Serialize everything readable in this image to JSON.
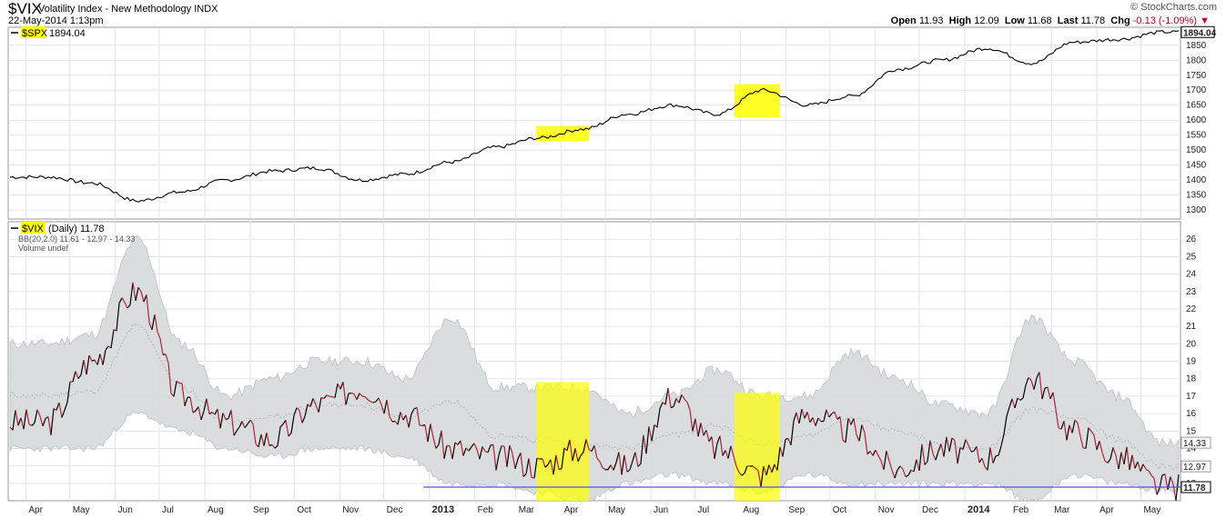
{
  "header": {
    "symbol": "$VIX",
    "name": "Volatility Index - New Methodology",
    "exchange": "INDX",
    "date": "22-May-2014 1:13pm",
    "brand": "© StockCharts.com",
    "open_label": "Open",
    "open": "11.93",
    "high_label": "High",
    "high": "12.09",
    "low_label": "Low",
    "low": "11.68",
    "last_label": "Last",
    "last": "11.78",
    "chg_label": "Chg",
    "chg": "-0.13 (-1.09%)"
  },
  "colors": {
    "spx_line": "#000000",
    "vix_up": "#000000",
    "vix_down": "#b3213a",
    "bband_fill": "#d8dcdc",
    "highlight": "#ffff00",
    "support_line": "#5555dd",
    "grid": "#e3e3e3"
  },
  "chart_data": [
    {
      "type": "line",
      "legend": "$SPX 1894.04",
      "legend_symbol": "$SPX",
      "legend_value": "1894.04",
      "last_value_label": "1894.04",
      "ylim": [
        1270,
        1910
      ],
      "yticks": [
        1300,
        1350,
        1400,
        1450,
        1500,
        1550,
        1600,
        1650,
        1700,
        1750,
        1800,
        1850
      ],
      "x_months": [
        "Apr",
        "May",
        "Jun",
        "Jul",
        "Aug",
        "Sep",
        "Oct",
        "Nov",
        "Dec",
        "2013",
        "Feb",
        "Mar",
        "Apr",
        "May",
        "Jun",
        "Jul",
        "Aug",
        "Sep",
        "Oct",
        "Nov",
        "Dec",
        "2014",
        "Feb",
        "Mar",
        "Apr",
        "May"
      ],
      "x": [
        "2012-04",
        "2012-05",
        "2012-06",
        "2012-07",
        "2012-08",
        "2012-09",
        "2012-10",
        "2012-11",
        "2012-12",
        "2013-01",
        "2013-02",
        "2013-03",
        "2013-04",
        "2013-05",
        "2013-06",
        "2013-07",
        "2013-08",
        "2013-09",
        "2013-10",
        "2013-11",
        "2013-12",
        "2014-01",
        "2014-02",
        "2014-03",
        "2014-04",
        "2014-05"
      ],
      "series": [
        {
          "values": [
            1410,
            1390,
            1330,
            1360,
            1400,
            1430,
            1440,
            1400,
            1420,
            1460,
            1510,
            1540,
            1570,
            1620,
            1650,
            1620,
            1700,
            1650,
            1680,
            1770,
            1800,
            1840,
            1790,
            1860,
            1870,
            1894
          ]
        }
      ],
      "highlights": [
        {
          "from": "2013-03-15",
          "to": "2013-04-20",
          "low": 1530,
          "high": 1580
        },
        {
          "from": "2013-07-28",
          "to": "2013-08-28",
          "low": 1610,
          "high": 1720
        }
      ]
    },
    {
      "type": "line",
      "legend": "$VIX (Daily) 11.78",
      "legend_symbol": "$VIX",
      "legend_rest": "(Daily) 11.78",
      "bb_label": "BB(20,2.0) 11.61 - 12.97 - 14.33",
      "volume_label": "Volume undef",
      "ylim": [
        11,
        27
      ],
      "yticks": [
        12,
        13,
        14,
        15,
        16,
        17,
        18,
        19,
        20,
        21,
        22,
        23,
        24,
        25,
        26
      ],
      "right_labels": [
        "14.33",
        "12.97",
        "11.78"
      ],
      "x_months": [
        "Apr",
        "May",
        "Jun",
        "Jul",
        "Aug",
        "Sep",
        "Oct",
        "Nov",
        "Dec",
        "2013",
        "Feb",
        "Mar",
        "Apr",
        "May",
        "Jun",
        "Jul",
        "Aug",
        "Sep",
        "Oct",
        "Nov",
        "Dec",
        "2014",
        "Feb",
        "Mar",
        "Apr",
        "May"
      ],
      "x": [
        "2012-04",
        "2012-05",
        "2012-06",
        "2012-07",
        "2012-08",
        "2012-09",
        "2012-10",
        "2012-11",
        "2012-12",
        "2013-01",
        "2013-02",
        "2013-03",
        "2013-04",
        "2013-05",
        "2013-06",
        "2013-07",
        "2013-08",
        "2013-09",
        "2013-10",
        "2013-11",
        "2013-12",
        "2014-01",
        "2014-02",
        "2014-03",
        "2014-04",
        "2014-05"
      ],
      "series": [
        {
          "name": "$VIX",
          "values": [
            15.5,
            19.0,
            23.0,
            17.0,
            15.5,
            14.5,
            16.5,
            17.5,
            16.0,
            14.0,
            13.5,
            13.0,
            14.0,
            13.0,
            17.0,
            14.0,
            12.5,
            16.0,
            15.0,
            12.8,
            14.0,
            13.5,
            18.0,
            15.0,
            13.5,
            11.8
          ]
        },
        {
          "name": "BB upper",
          "values": [
            20.0,
            20.5,
            26.0,
            20.0,
            17.0,
            18.0,
            19.0,
            19.0,
            18.0,
            21.5,
            17.5,
            17.5,
            17.5,
            16.0,
            17.0,
            18.5,
            17.0,
            17.0,
            19.5,
            18.0,
            16.5,
            16.0,
            21.5,
            19.0,
            17.0,
            14.3
          ]
        },
        {
          "name": "BB lower",
          "values": [
            14.0,
            14.0,
            16.0,
            15.0,
            14.0,
            13.5,
            14.0,
            14.0,
            13.5,
            12.0,
            12.0,
            11.5,
            11.0,
            12.0,
            12.5,
            12.0,
            11.5,
            12.5,
            12.0,
            12.0,
            12.0,
            12.0,
            11.0,
            12.5,
            12.0,
            11.6
          ]
        }
      ],
      "support_line": 11.78,
      "highlights": [
        {
          "from": "2013-03-15",
          "to": "2013-04-20",
          "low": 11,
          "high": 17.8
        },
        {
          "from": "2013-07-28",
          "to": "2013-08-28",
          "low": 11,
          "high": 17.2
        }
      ]
    }
  ]
}
